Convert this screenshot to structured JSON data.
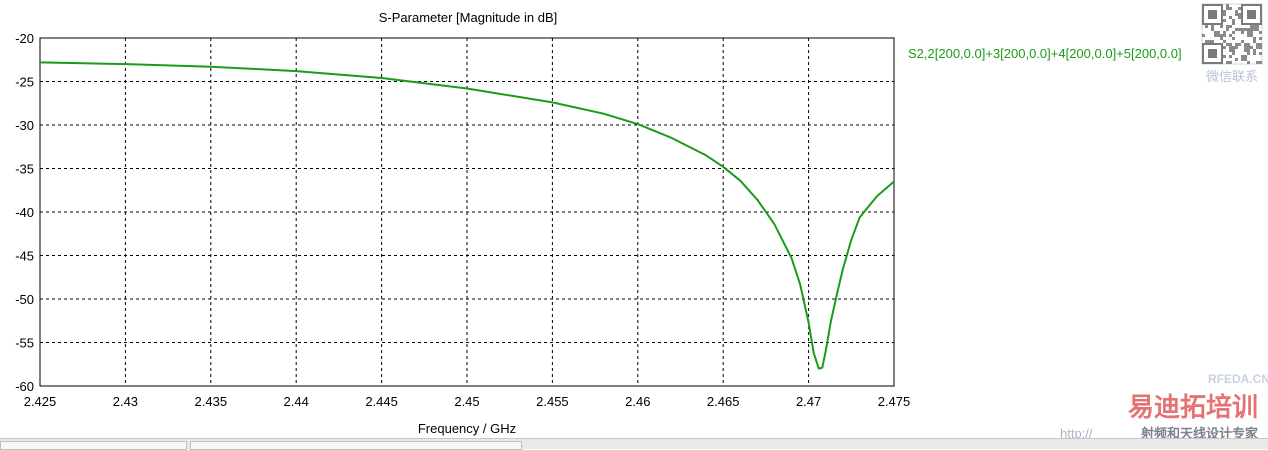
{
  "chart_data": {
    "type": "line",
    "title": "S-Parameter [Magnitude in dB]",
    "xlabel": "Frequency / GHz",
    "ylabel": "",
    "xlim": [
      2.425,
      2.475
    ],
    "ylim": [
      -60,
      -20
    ],
    "xticks": [
      "2.425",
      "2.43",
      "2.435",
      "2.44",
      "2.445",
      "2.45",
      "2.455",
      "2.46",
      "2.465",
      "2.47",
      "2.475"
    ],
    "yticks": [
      "-20",
      "-25",
      "-30",
      "-35",
      "-40",
      "-45",
      "-50",
      "-55",
      "-60"
    ],
    "grid": "dashed",
    "legend_position": "top-right",
    "series": [
      {
        "name": "S2,2[200,0.0]+3[200,0.0]+4[200,0.0]+5[200,0.0]",
        "color": "#1a9c1a",
        "x": [
          2.425,
          2.43,
          2.435,
          2.44,
          2.445,
          2.45,
          2.455,
          2.458,
          2.46,
          2.462,
          2.464,
          2.465,
          2.466,
          2.467,
          2.468,
          2.469,
          2.4695,
          2.47,
          2.4703,
          2.4706,
          2.4708,
          2.471,
          2.4713,
          2.4717,
          2.472,
          2.4725,
          2.473,
          2.474,
          2.475
        ],
        "y": [
          -22.8,
          -23.0,
          -23.3,
          -23.8,
          -24.6,
          -25.8,
          -27.4,
          -28.7,
          -29.9,
          -31.5,
          -33.5,
          -34.8,
          -36.4,
          -38.6,
          -41.4,
          -45.3,
          -48.3,
          -52.7,
          -56.2,
          -58.0,
          -57.9,
          -56.0,
          -52.6,
          -49.1,
          -46.6,
          -43.2,
          -40.6,
          -38.2,
          -36.5
        ]
      }
    ]
  },
  "watermarks": {
    "qr_caption": "微信联系",
    "site_text": "RFEDA.CN",
    "brand_text": "易迪拓培训",
    "slogan_text": "射频和天线设计专家",
    "url_text": "http://"
  }
}
